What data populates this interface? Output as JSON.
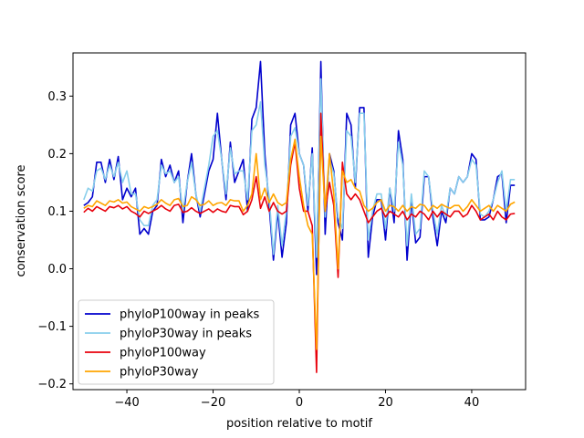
{
  "chart_data": {
    "type": "line",
    "xlabel": "position relative to motif",
    "ylabel": "conservation score",
    "xlim": [
      -52.5,
      52.5
    ],
    "ylim": [
      -0.21,
      0.375
    ],
    "xticks": [
      -40,
      -20,
      0,
      20,
      40
    ],
    "yticks": [
      -0.2,
      -0.1,
      0.0,
      0.1,
      0.2,
      0.3
    ],
    "legend_position": "lower-left",
    "grid": false,
    "series": [
      {
        "name": "phyloP100way in peaks",
        "color": "#0000cd",
        "x": [
          -50,
          -49,
          -48,
          -47,
          -46,
          -45,
          -44,
          -43,
          -42,
          -41,
          -40,
          -39,
          -38,
          -37,
          -36,
          -35,
          -34,
          -33,
          -32,
          -31,
          -30,
          -29,
          -28,
          -27,
          -26,
          -25,
          -24,
          -23,
          -22,
          -21,
          -20,
          -19,
          -18,
          -17,
          -16,
          -15,
          -14,
          -13,
          -12,
          -11,
          -10,
          -9,
          -8,
          -7,
          -6,
          -5,
          -4,
          -3,
          -2,
          -1,
          0,
          1,
          2,
          3,
          4,
          5,
          6,
          7,
          8,
          9,
          10,
          11,
          12,
          13,
          14,
          15,
          16,
          17,
          18,
          19,
          20,
          21,
          22,
          23,
          24,
          25,
          26,
          27,
          28,
          29,
          30,
          31,
          32,
          33,
          34,
          35,
          36,
          37,
          38,
          39,
          40,
          41,
          42,
          43,
          44,
          45,
          46,
          47,
          48,
          49,
          50
        ],
        "y": [
          0.11,
          0.115,
          0.125,
          0.185,
          0.185,
          0.15,
          0.19,
          0.155,
          0.195,
          0.12,
          0.14,
          0.125,
          0.14,
          0.06,
          0.07,
          0.06,
          0.1,
          0.11,
          0.19,
          0.16,
          0.18,
          0.15,
          0.17,
          0.08,
          0.15,
          0.2,
          0.13,
          0.09,
          0.13,
          0.17,
          0.19,
          0.27,
          0.19,
          0.12,
          0.22,
          0.15,
          0.17,
          0.19,
          0.1,
          0.26,
          0.28,
          0.36,
          0.2,
          0.11,
          0.015,
          0.1,
          0.02,
          0.08,
          0.25,
          0.27,
          0.2,
          0.18,
          0.1,
          0.21,
          -0.01,
          0.36,
          0.06,
          0.2,
          0.17,
          0.08,
          0.05,
          0.27,
          0.25,
          0.14,
          0.28,
          0.28,
          0.02,
          0.09,
          0.12,
          0.12,
          0.05,
          0.14,
          0.08,
          0.24,
          0.19,
          0.015,
          0.12,
          0.045,
          0.055,
          0.16,
          0.16,
          0.09,
          0.04,
          0.1,
          0.08,
          0.14,
          0.13,
          0.16,
          0.15,
          0.16,
          0.2,
          0.19,
          0.085,
          0.085,
          0.09,
          0.12,
          0.16,
          0.165,
          0.08,
          0.145,
          0.145
        ],
        "tick_note": ""
      },
      {
        "name": "phyloP30way in peaks",
        "color": "#87ceeb",
        "x": [
          -50,
          -49,
          -48,
          -47,
          -46,
          -45,
          -44,
          -43,
          -42,
          -41,
          -40,
          -39,
          -38,
          -37,
          -36,
          -35,
          -34,
          -33,
          -32,
          -31,
          -30,
          -29,
          -28,
          -27,
          -26,
          -25,
          -24,
          -23,
          -22,
          -21,
          -20,
          -19,
          -18,
          -17,
          -16,
          -15,
          -14,
          -13,
          -12,
          -11,
          -10,
          -9,
          -8,
          -7,
          -6,
          -5,
          -4,
          -3,
          -2,
          -1,
          0,
          1,
          2,
          3,
          4,
          5,
          6,
          7,
          8,
          9,
          10,
          11,
          12,
          13,
          14,
          15,
          16,
          17,
          18,
          19,
          20,
          21,
          22,
          23,
          24,
          25,
          26,
          27,
          28,
          29,
          30,
          31,
          32,
          33,
          34,
          35,
          36,
          37,
          38,
          39,
          40,
          41,
          42,
          43,
          44,
          45,
          46,
          47,
          48,
          49,
          50
        ],
        "y": [
          0.12,
          0.14,
          0.135,
          0.17,
          0.175,
          0.155,
          0.18,
          0.16,
          0.185,
          0.15,
          0.17,
          0.13,
          0.13,
          0.085,
          0.075,
          0.075,
          0.11,
          0.12,
          0.18,
          0.165,
          0.17,
          0.15,
          0.16,
          0.1,
          0.15,
          0.185,
          0.13,
          0.1,
          0.14,
          0.18,
          0.23,
          0.24,
          0.19,
          0.13,
          0.21,
          0.165,
          0.17,
          0.17,
          0.12,
          0.24,
          0.25,
          0.29,
          0.18,
          0.125,
          0.025,
          0.11,
          0.04,
          0.1,
          0.23,
          0.245,
          0.2,
          0.18,
          0.11,
          0.2,
          0.02,
          0.33,
          0.09,
          0.19,
          0.165,
          0.09,
          0.07,
          0.24,
          0.23,
          0.15,
          0.27,
          0.27,
          0.05,
          0.1,
          0.13,
          0.13,
          0.07,
          0.14,
          0.1,
          0.22,
          0.18,
          0.04,
          0.13,
          0.06,
          0.07,
          0.17,
          0.16,
          0.1,
          0.06,
          0.11,
          0.09,
          0.14,
          0.13,
          0.16,
          0.15,
          0.16,
          0.19,
          0.18,
          0.095,
          0.09,
          0.1,
          0.12,
          0.15,
          0.17,
          0.1,
          0.155,
          0.155
        ],
        "tick_note": ""
      },
      {
        "name": "phyloP100way",
        "color": "#e8000b",
        "x": [
          -50,
          -49,
          -48,
          -47,
          -46,
          -45,
          -44,
          -43,
          -42,
          -41,
          -40,
          -39,
          -38,
          -37,
          -36,
          -35,
          -34,
          -33,
          -32,
          -31,
          -30,
          -29,
          -28,
          -27,
          -26,
          -25,
          -24,
          -23,
          -22,
          -21,
          -20,
          -19,
          -18,
          -17,
          -16,
          -15,
          -14,
          -13,
          -12,
          -11,
          -10,
          -9,
          -8,
          -7,
          -6,
          -5,
          -4,
          -3,
          -2,
          -1,
          0,
          1,
          2,
          3,
          4,
          5,
          6,
          7,
          8,
          9,
          10,
          11,
          12,
          13,
          14,
          15,
          16,
          17,
          18,
          19,
          20,
          21,
          22,
          23,
          24,
          25,
          26,
          27,
          28,
          29,
          30,
          31,
          32,
          33,
          34,
          35,
          36,
          37,
          38,
          39,
          40,
          41,
          42,
          43,
          44,
          45,
          46,
          47,
          48,
          49,
          50
        ],
        "y": [
          0.098,
          0.105,
          0.1,
          0.108,
          0.104,
          0.1,
          0.108,
          0.106,
          0.11,
          0.104,
          0.108,
          0.1,
          0.096,
          0.09,
          0.1,
          0.096,
          0.1,
          0.104,
          0.11,
          0.104,
          0.1,
          0.11,
          0.112,
          0.098,
          0.1,
          0.106,
          0.1,
          0.096,
          0.1,
          0.104,
          0.098,
          0.104,
          0.1,
          0.098,
          0.11,
          0.108,
          0.108,
          0.094,
          0.1,
          0.12,
          0.16,
          0.105,
          0.125,
          0.1,
          0.115,
          0.1,
          0.095,
          0.1,
          0.18,
          0.22,
          0.14,
          0.1,
          0.1,
          0.075,
          -0.18,
          0.27,
          0.1,
          0.15,
          0.11,
          -0.015,
          0.185,
          0.13,
          0.12,
          0.13,
          0.12,
          0.1,
          0.08,
          0.09,
          0.1,
          0.105,
          0.09,
          0.1,
          0.095,
          0.09,
          0.1,
          0.085,
          0.095,
          0.09,
          0.1,
          0.095,
          0.085,
          0.1,
          0.09,
          0.1,
          0.095,
          0.09,
          0.1,
          0.1,
          0.09,
          0.095,
          0.11,
          0.1,
          0.085,
          0.09,
          0.095,
          0.085,
          0.1,
          0.09,
          0.085,
          0.095,
          0.096
        ],
        "tick_note": ""
      },
      {
        "name": "phyloP30way",
        "color": "#ffa500",
        "x": [
          -50,
          -49,
          -48,
          -47,
          -46,
          -45,
          -44,
          -43,
          -42,
          -41,
          -40,
          -39,
          -38,
          -37,
          -36,
          -35,
          -34,
          -33,
          -32,
          -31,
          -30,
          -29,
          -28,
          -27,
          -26,
          -25,
          -24,
          -23,
          -22,
          -21,
          -20,
          -19,
          -18,
          -17,
          -16,
          -15,
          -14,
          -13,
          -12,
          -11,
          -10,
          -9,
          -8,
          -7,
          -6,
          -5,
          -4,
          -3,
          -2,
          -1,
          0,
          1,
          2,
          3,
          4,
          5,
          6,
          7,
          8,
          9,
          10,
          11,
          12,
          13,
          14,
          15,
          16,
          17,
          18,
          19,
          20,
          21,
          22,
          23,
          24,
          25,
          26,
          27,
          28,
          29,
          30,
          31,
          32,
          33,
          34,
          35,
          36,
          37,
          38,
          39,
          40,
          41,
          42,
          43,
          44,
          45,
          46,
          47,
          48,
          49,
          50
        ],
        "y": [
          0.105,
          0.11,
          0.108,
          0.118,
          0.114,
          0.11,
          0.118,
          0.116,
          0.12,
          0.114,
          0.116,
          0.108,
          0.104,
          0.1,
          0.108,
          0.105,
          0.108,
          0.112,
          0.12,
          0.114,
          0.11,
          0.12,
          0.122,
          0.108,
          0.11,
          0.125,
          0.12,
          0.11,
          0.112,
          0.118,
          0.11,
          0.114,
          0.115,
          0.11,
          0.12,
          0.118,
          0.118,
          0.1,
          0.11,
          0.13,
          0.2,
          0.12,
          0.14,
          0.115,
          0.13,
          0.115,
          0.11,
          0.115,
          0.19,
          0.225,
          0.16,
          0.11,
          0.075,
          0.06,
          -0.14,
          0.23,
          0.1,
          0.2,
          0.13,
          0.0,
          0.17,
          0.15,
          0.155,
          0.14,
          0.135,
          0.11,
          0.1,
          0.105,
          0.115,
          0.12,
          0.1,
          0.11,
          0.108,
          0.1,
          0.11,
          0.1,
          0.108,
          0.105,
          0.112,
          0.11,
          0.1,
          0.11,
          0.105,
          0.112,
          0.108,
          0.105,
          0.11,
          0.11,
          0.1,
          0.108,
          0.12,
          0.11,
          0.1,
          0.105,
          0.11,
          0.1,
          0.11,
          0.105,
          0.1,
          0.112,
          0.116
        ],
        "tick_note": ""
      }
    ]
  }
}
